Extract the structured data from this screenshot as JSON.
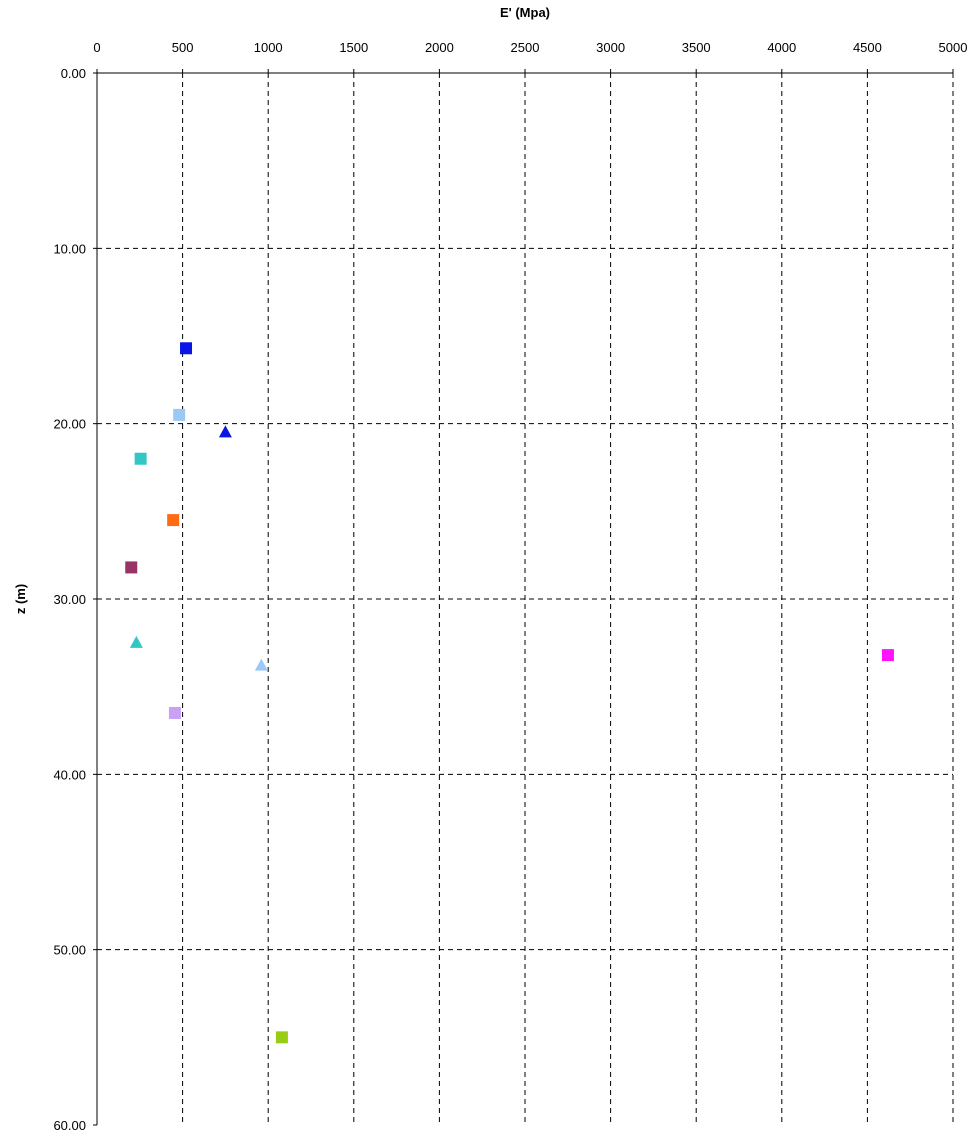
{
  "chart_data": {
    "type": "scatter",
    "title": "",
    "xlabel": "E' (Mpa)",
    "ylabel": "z (m)",
    "xlim": [
      0,
      5000
    ],
    "ylim": [
      0,
      60
    ],
    "y_inverted": true,
    "x_axis_position": "top",
    "grid": true,
    "legend": "none",
    "x_ticks": [
      "0",
      "500",
      "1000",
      "1500",
      "2000",
      "2500",
      "3000",
      "3500",
      "4000",
      "4500",
      "5000"
    ],
    "y_ticks": [
      "0.00",
      "10.00",
      "20.00",
      "30.00",
      "40.00",
      "50.00",
      "60.00"
    ],
    "points": [
      {
        "x": 520,
        "y": 15.7,
        "marker": "square",
        "color": "#0a14e6"
      },
      {
        "x": 480,
        "y": 19.5,
        "marker": "square",
        "color": "#9cc8f5"
      },
      {
        "x": 750,
        "y": 20.5,
        "marker": "triangle",
        "color": "#0a14e6"
      },
      {
        "x": 255,
        "y": 22.0,
        "marker": "square",
        "color": "#33c6c6"
      },
      {
        "x": 445,
        "y": 25.5,
        "marker": "square",
        "color": "#ff6a14"
      },
      {
        "x": 200,
        "y": 28.2,
        "marker": "square",
        "color": "#993366"
      },
      {
        "x": 230,
        "y": 32.5,
        "marker": "triangle",
        "color": "#33c6c6"
      },
      {
        "x": 960,
        "y": 33.8,
        "marker": "triangle",
        "color": "#9cc8f5"
      },
      {
        "x": 4620,
        "y": 33.2,
        "marker": "square",
        "color": "#ff14ff"
      },
      {
        "x": 455,
        "y": 36.5,
        "marker": "square",
        "color": "#c8a0f5"
      },
      {
        "x": 1080,
        "y": 55.0,
        "marker": "square",
        "color": "#99cc14"
      }
    ]
  }
}
